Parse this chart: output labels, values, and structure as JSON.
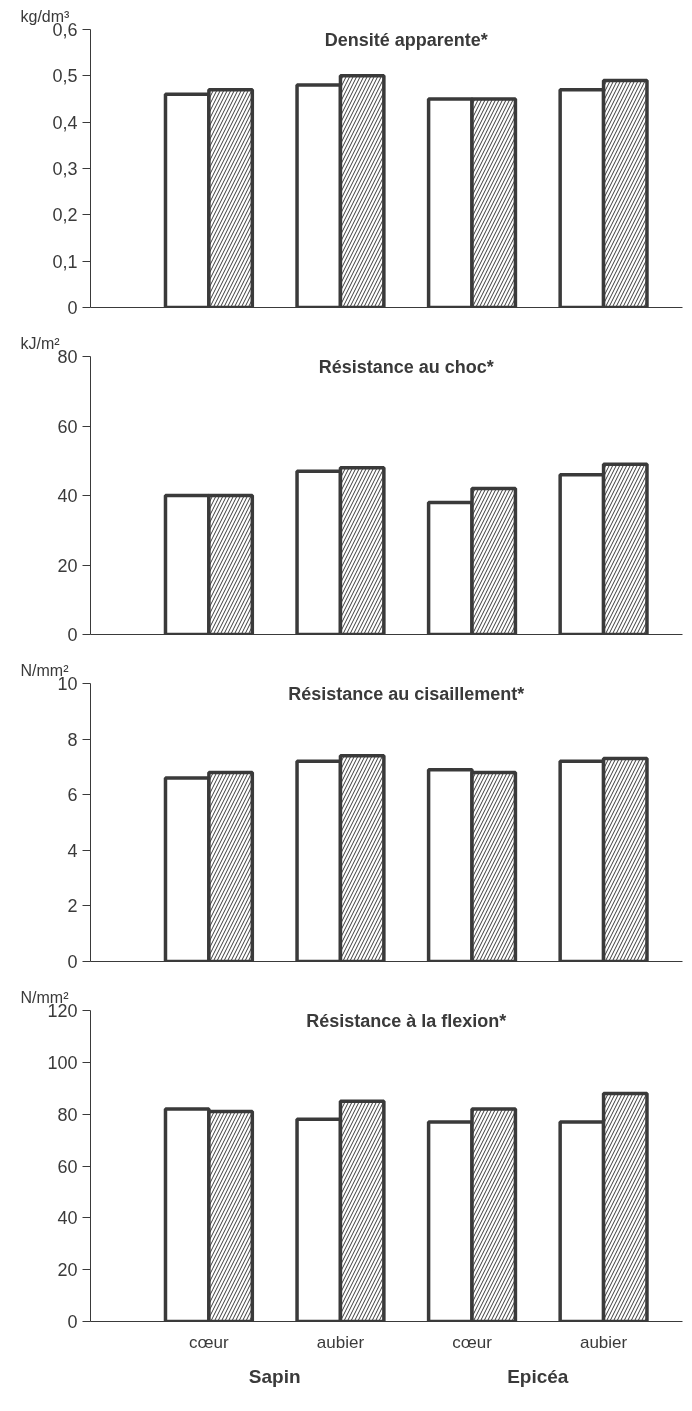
{
  "chart_data": [
    {
      "type": "bar",
      "title": "Densité apparente*",
      "ylabel": "kg/dm³",
      "categories": [
        null,
        null,
        null,
        null
      ],
      "series": [
        {
          "color": "#ffffff",
          "values": [
            0.46,
            0.48,
            0.45,
            0.47
          ]
        },
        {
          "color": "#ffffff",
          "values": [
            0.47,
            0.5,
            0.45,
            0.49
          ]
        }
      ],
      "ylim": [
        0,
        0.6
      ],
      "yticks": [
        0,
        {
          "value": 0.1,
          "label": "0,1"
        },
        {
          "value": 0.2,
          "label": "0,2"
        },
        {
          "value": 0.3,
          "label": "0,3"
        },
        {
          "value": 0.4,
          "label": "0,4"
        },
        {
          "value": 0.5,
          "label": "0,5"
        },
        {
          "value": 0.6,
          "label": "0,6"
        }
      ],
      "tick_labels": "y",
      "grid": false
    },
    {
      "type": "bar",
      "title": "Résistance au choc*",
      "ylabel": "kJ/m²",
      "categories": [
        null,
        null,
        null,
        null
      ],
      "series": [
        {
          "color": "#ffffff",
          "values": [
            40,
            47,
            38,
            46
          ]
        },
        {
          "color": "#ffffff",
          "values": [
            40,
            48,
            42,
            49
          ]
        }
      ],
      "ylim": [
        0,
        80
      ],
      "yticks": [
        0,
        20,
        40,
        60,
        80
      ],
      "tick_labels": "y",
      "grid": false
    },
    {
      "type": "bar",
      "title": "Résistance au cisaillement*",
      "ylabel": "N/mm²",
      "categories": [
        null,
        null,
        null,
        null
      ],
      "series": [
        {
          "color": "#ffffff",
          "values": [
            6.6,
            7.2,
            6.9,
            7.2
          ]
        },
        {
          "color": "#ffffff",
          "values": [
            6.8,
            7.4,
            6.8,
            7.3
          ]
        }
      ],
      "ylim": [
        0,
        10
      ],
      "yticks": [
        0,
        2,
        4,
        6,
        8,
        10
      ],
      "tick_labels": "y",
      "grid": false
    },
    {
      "type": "bar",
      "title": "Résistance à la flexion*",
      "ylabel": "N/mm²",
      "categories": [
        "cœur",
        "aubier",
        "cœur",
        "aubier"
      ],
      "series": [
        {
          "color": "#ffffff",
          "values": [
            82,
            78,
            77,
            77
          ]
        },
        {
          "color": "#ffffff",
          "values": [
            81,
            85,
            82,
            88
          ]
        }
      ],
      "ylim": [
        0,
        120
      ],
      "yticks": [
        0,
        20,
        40,
        60,
        80,
        100,
        120
      ],
      "annotations": [
        "Sapin",
        "Epicéa"
      ],
      "grid": false
    }
  ]
}
